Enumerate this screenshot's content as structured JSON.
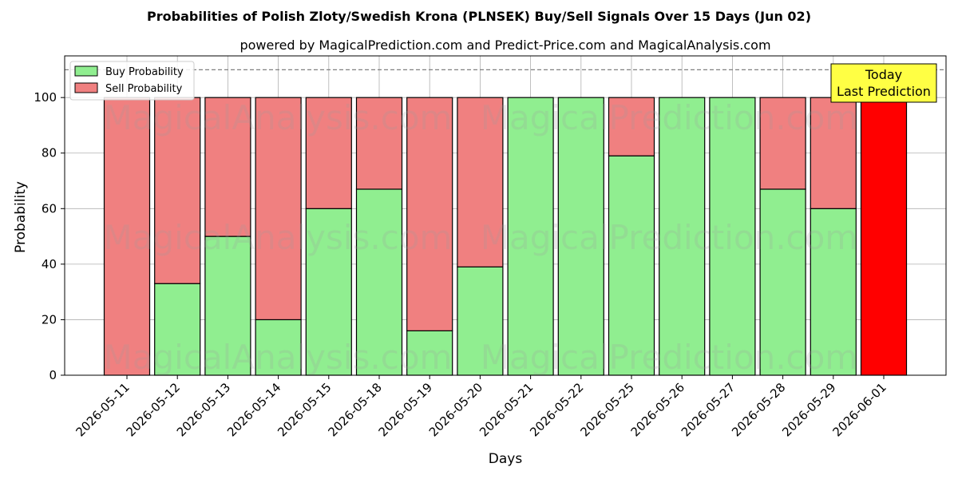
{
  "chart_data": {
    "type": "bar",
    "stacked": true,
    "title": "Probabilities of Polish Zloty/Swedish Krona (PLNSEK) Buy/Sell Signals Over 15 Days (Jun 02)",
    "subtitle": "powered by MagicalPrediction.com and Predict-Price.com and MagicalAnalysis.com",
    "xlabel": "Days",
    "ylabel": "Probability",
    "ylim": [
      0,
      115
    ],
    "yticks": [
      0,
      20,
      40,
      60,
      80,
      100
    ],
    "grid": true,
    "legend_position": "top-left",
    "reference_line": 110,
    "categories": [
      "2026-05-11",
      "2026-05-12",
      "2026-05-13",
      "2026-05-14",
      "2026-05-15",
      "2026-05-18",
      "2026-05-19",
      "2026-05-20",
      "2026-05-21",
      "2026-05-22",
      "2026-05-25",
      "2026-05-26",
      "2026-05-27",
      "2026-05-28",
      "2026-05-29",
      "2026-06-01"
    ],
    "series": [
      {
        "name": "Buy Probability",
        "color": "#90ee90",
        "values": [
          0,
          33,
          50,
          20,
          60,
          67,
          16,
          39,
          100,
          100,
          79,
          100,
          100,
          67,
          60,
          0
        ]
      },
      {
        "name": "Sell Probability",
        "color": "#f08080",
        "values": [
          100,
          67,
          50,
          80,
          40,
          33,
          84,
          61,
          0,
          0,
          21,
          0,
          0,
          33,
          40,
          100
        ]
      }
    ],
    "highlight": {
      "index": 15,
      "color": "#ff0000"
    },
    "annotation": {
      "line1": "Today",
      "line2": "Last Prediction",
      "background": "#ffff44"
    },
    "watermarks": [
      "MagicalAnalysis.com",
      "MagicalPrediction.com"
    ]
  }
}
